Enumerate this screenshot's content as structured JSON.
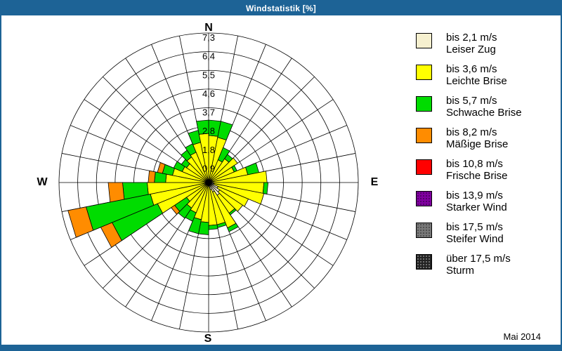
{
  "window": {
    "title": "Windstatistik [%]",
    "footer": "Mai 2014"
  },
  "colors": {
    "frame_blue": "#1d6396",
    "background": "#ffffff",
    "grid": "#000000"
  },
  "compass": {
    "north": "N",
    "east": "E",
    "south": "S",
    "west": "W"
  },
  "legend": {
    "items": [
      {
        "speed": "bis 2,1 m/s",
        "name": "Leiser Zug",
        "color": "#f6f0cf",
        "texture": "none"
      },
      {
        "speed": "bis 3,6 m/s",
        "name": "Leichte Brise",
        "color": "#ffff00",
        "texture": "none"
      },
      {
        "speed": "bis 5,7 m/s",
        "name": "Schwache Brise",
        "color": "#00dc00",
        "texture": "none"
      },
      {
        "speed": "bis 8,2 m/s",
        "name": "Mäßige Brise",
        "color": "#ff8c00",
        "texture": "none"
      },
      {
        "speed": "bis 10,8 m/s",
        "name": "Frische Brise",
        "color": "#ff0000",
        "texture": "none"
      },
      {
        "speed": "bis 13,9 m/s",
        "name": "Starker Wind",
        "color": "#8000a0",
        "texture": "dark-dots"
      },
      {
        "speed": "bis 17,5 m/s",
        "name": "Steifer Wind",
        "color": "#787878",
        "texture": "dark-dots"
      },
      {
        "speed": "über 17,5 m/s",
        "name": "Sturm",
        "color": "#222222",
        "texture": "light-dots"
      }
    ]
  },
  "chart_data": {
    "type": "windrose-stacked-polar-bar",
    "title": "Windstatistik [%]",
    "units": "%",
    "period": "Mai 2014",
    "sectors": 32,
    "sector_width_deg": 11.25,
    "first_sector_start_deg": 0,
    "rings": 8,
    "rmax": 7.3,
    "ring_values": [
      0.9,
      1.8,
      2.8,
      3.7,
      4.6,
      5.5,
      6.4,
      7.3
    ],
    "ring_labels": [
      "0,9",
      "1,8",
      "2,8",
      "3,7",
      "4,6",
      "5,5",
      "6,4",
      "7,3"
    ],
    "grid": true,
    "legend_position": "right",
    "series": [
      {
        "name": "bis 2,1 m/s (Leiser Zug)",
        "color": "#f6f0cf",
        "values": [
          0.1,
          0.1,
          0.1,
          0.1,
          0.2,
          0.15,
          0.15,
          0.2,
          0.25,
          0.25,
          0.5,
          0.65,
          0.75,
          0.5,
          0.35,
          0.2,
          0.15,
          0.15,
          0.1,
          0.1,
          0.1,
          0.1,
          0.1,
          0.1,
          0.1,
          0.1,
          0.1,
          0.1,
          0.1,
          0.1,
          0.1,
          0.1
        ]
      },
      {
        "name": "bis 3,6 m/s (Leichte Brise)",
        "color": "#ffff00",
        "values": [
          2.2,
          2.15,
          1.1,
          1.3,
          1.5,
          1.2,
          1.8,
          2.65,
          2.45,
          2.5,
          1.6,
          1.35,
          1.05,
          1.9,
          1.75,
          1.9,
          1.8,
          1.7,
          1.5,
          1.4,
          1.2,
          2.6,
          2.8,
          2.9,
          2.0,
          1.7,
          1.3,
          1.2,
          1.4,
          1.5,
          1.9,
          2.3
        ]
      },
      {
        "name": "bis 5,7 m/s (Schwache Brise)",
        "color": "#00dc00",
        "values": [
          0.75,
          0.8,
          0.65,
          0.25,
          0.0,
          0.15,
          0.55,
          0.0,
          0.2,
          0.0,
          0.0,
          0.0,
          0.1,
          0.2,
          0.15,
          0.2,
          0.6,
          0.7,
          0.45,
          0.6,
          0.7,
          2.4,
          3.2,
          1.2,
          0.55,
          0.5,
          0.45,
          0.3,
          0.4,
          0.45,
          0.6,
          0.65
        ]
      },
      {
        "name": "bis 8,2 m/s (Mäßige Brise)",
        "color": "#ff8c00",
        "values": [
          0,
          0,
          0,
          0,
          0,
          0,
          0,
          0,
          0,
          0,
          0,
          0,
          0,
          0,
          0,
          0,
          0,
          0,
          0,
          0,
          0.2,
          0.6,
          0.9,
          0.7,
          0.3,
          0.25,
          0,
          0,
          0,
          0,
          0,
          0
        ]
      },
      {
        "name": "bis 10,8 m/s (Frische Brise)",
        "color": "#ff0000",
        "values": [
          0,
          0,
          0,
          0,
          0,
          0,
          0,
          0,
          0,
          0,
          0,
          0,
          0,
          0,
          0,
          0,
          0,
          0,
          0,
          0,
          0,
          0,
          0,
          0,
          0,
          0,
          0,
          0,
          0,
          0,
          0,
          0
        ]
      },
      {
        "name": "bis 13,9 m/s (Starker Wind)",
        "color": "#8000a0",
        "values": [
          0,
          0,
          0,
          0,
          0,
          0,
          0,
          0,
          0,
          0,
          0,
          0,
          0,
          0,
          0,
          0,
          0,
          0,
          0,
          0,
          0,
          0,
          0,
          0,
          0,
          0,
          0,
          0,
          0,
          0,
          0,
          0
        ]
      },
      {
        "name": "bis 17,5 m/s (Steifer Wind)",
        "color": "#787878",
        "values": [
          0,
          0,
          0,
          0,
          0,
          0,
          0,
          0,
          0,
          0,
          0,
          0,
          0,
          0,
          0,
          0,
          0,
          0,
          0,
          0,
          0,
          0,
          0,
          0,
          0,
          0,
          0,
          0,
          0,
          0,
          0,
          0
        ]
      },
      {
        "name": "über 17,5 m/s (Sturm)",
        "color": "#222222",
        "values": [
          0,
          0,
          0,
          0,
          0,
          0,
          0,
          0,
          0,
          0,
          0,
          0,
          0,
          0,
          0,
          0,
          0,
          0,
          0,
          0,
          0,
          0,
          0,
          0,
          0,
          0,
          0,
          0,
          0,
          0,
          0,
          0
        ]
      }
    ]
  }
}
